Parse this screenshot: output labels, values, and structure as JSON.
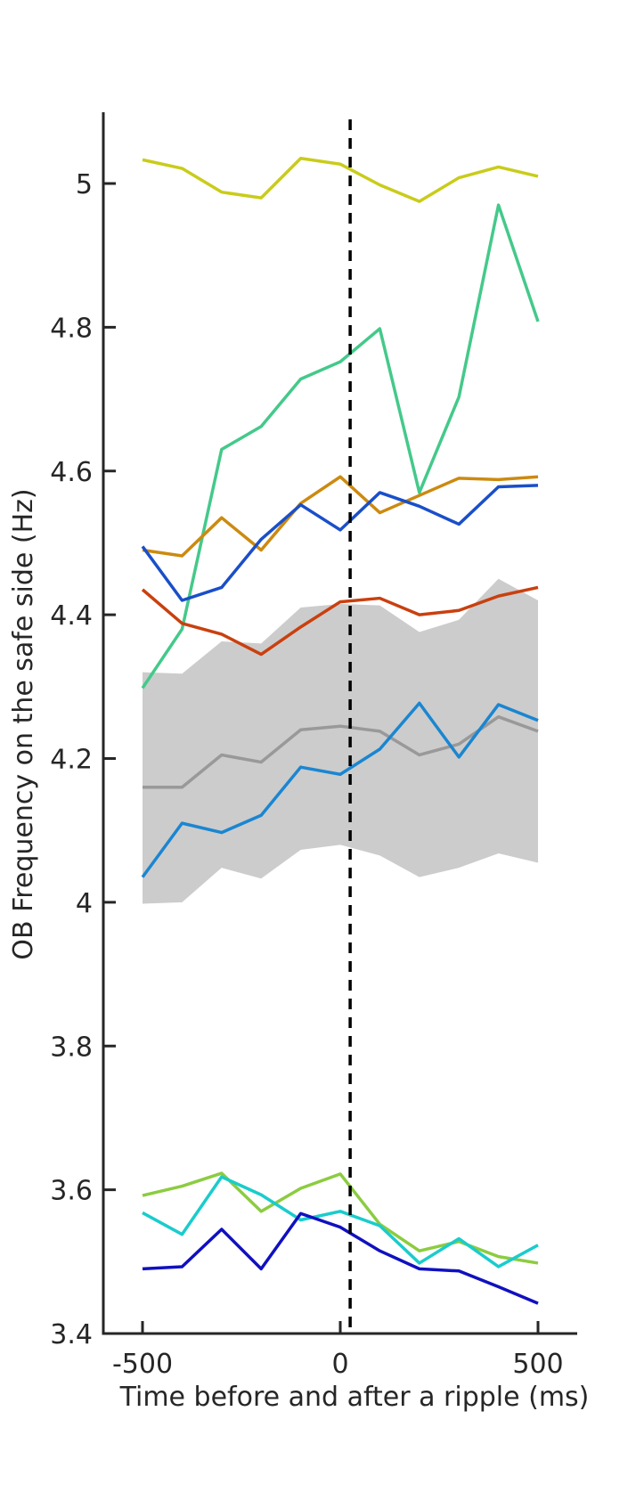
{
  "chart_data": {
    "type": "line",
    "title": "",
    "xlabel": "Time before and after a ripple (ms)",
    "ylabel": "OB Frequency on the safe side (Hz)",
    "xlim": [
      -600,
      600
    ],
    "ylim": [
      3.4,
      5.1
    ],
    "xticks": [
      -500,
      0,
      500
    ],
    "xtick_labels": [
      "-500",
      "0",
      "500"
    ],
    "yticks": [
      3.4,
      3.6,
      3.8,
      4.0,
      4.2,
      4.4,
      4.6,
      4.8,
      5.0
    ],
    "ytick_labels": [
      "3.4",
      "3.6",
      "3.8",
      "4",
      "4.2",
      "4.4",
      "4.6",
      "4.8",
      "5"
    ],
    "grid": false,
    "legend": "none",
    "x": [
      -500,
      -400,
      -300,
      -200,
      -100,
      0,
      100,
      200,
      300,
      400,
      500
    ],
    "ripple_marker_x": 25,
    "mean_band": {
      "mean": [
        4.16,
        4.16,
        4.205,
        4.195,
        4.24,
        4.245,
        4.238,
        4.205,
        4.22,
        4.258,
        4.238
      ],
      "upper": [
        4.32,
        4.318,
        4.363,
        4.36,
        4.41,
        4.415,
        4.413,
        4.376,
        4.393,
        4.45,
        4.42
      ],
      "lower": [
        3.998,
        4.0,
        4.048,
        4.033,
        4.073,
        4.08,
        4.065,
        4.035,
        4.048,
        4.068,
        4.055
      ],
      "line_color": "#999999",
      "band_color": "#cccccc"
    },
    "series": [
      {
        "color": "#c9cc1a",
        "values": [
          5.033,
          5.021,
          4.988,
          4.98,
          5.035,
          5.027,
          4.998,
          4.975,
          5.008,
          5.023,
          5.01
        ]
      },
      {
        "color": "#44c98a",
        "values": [
          4.298,
          4.38,
          4.63,
          4.662,
          4.728,
          4.752,
          4.798,
          4.57,
          4.703,
          4.97,
          4.808
        ]
      },
      {
        "color": "#cc8a10",
        "values": [
          4.49,
          4.482,
          4.535,
          4.49,
          4.555,
          4.592,
          4.542,
          4.566,
          4.59,
          4.588,
          4.592
        ]
      },
      {
        "color": "#1a4fc9",
        "values": [
          4.495,
          4.42,
          4.438,
          4.505,
          4.553,
          4.518,
          4.57,
          4.551,
          4.526,
          4.578,
          4.58
        ]
      },
      {
        "color": "#c9400f",
        "values": [
          4.435,
          4.388,
          4.373,
          4.345,
          4.383,
          4.418,
          4.423,
          4.4,
          4.406,
          4.426,
          4.438
        ]
      },
      {
        "color": "#1a86d1",
        "values": [
          4.035,
          4.11,
          4.097,
          4.121,
          4.188,
          4.178,
          4.213,
          4.277,
          4.202,
          4.275,
          4.253
        ]
      },
      {
        "color": "#8ccc40",
        "values": [
          3.592,
          3.605,
          3.623,
          3.57,
          3.602,
          3.622,
          3.552,
          3.515,
          3.528,
          3.507,
          3.498
        ]
      },
      {
        "color": "#1acccc",
        "values": [
          3.568,
          3.538,
          3.618,
          3.593,
          3.558,
          3.57,
          3.55,
          3.498,
          3.532,
          3.493,
          3.523
        ]
      },
      {
        "color": "#1010c0",
        "values": [
          3.49,
          3.493,
          3.545,
          3.49,
          3.567,
          3.548,
          3.515,
          3.49,
          3.487,
          3.465,
          3.442
        ]
      }
    ]
  }
}
